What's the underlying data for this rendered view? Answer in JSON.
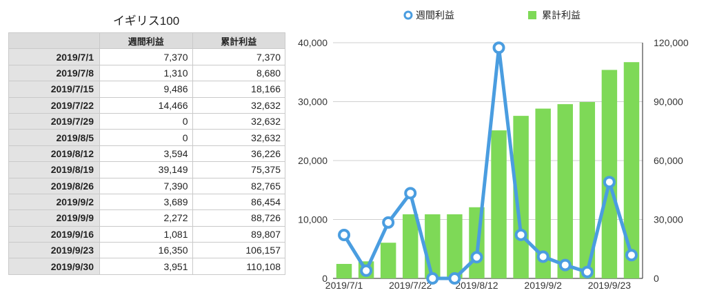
{
  "table": {
    "title": "イギリス100",
    "headers": [
      "",
      "週間利益",
      "累計利益"
    ],
    "rows": [
      [
        "2019/7/1",
        "7,370",
        "7,370"
      ],
      [
        "2019/7/8",
        "1,310",
        "8,680"
      ],
      [
        "2019/7/15",
        "9,486",
        "18,166"
      ],
      [
        "2019/7/22",
        "14,466",
        "32,632"
      ],
      [
        "2019/7/29",
        "0",
        "32,632"
      ],
      [
        "2019/8/5",
        "0",
        "32,632"
      ],
      [
        "2019/8/12",
        "3,594",
        "36,226"
      ],
      [
        "2019/8/19",
        "39,149",
        "75,375"
      ],
      [
        "2019/8/26",
        "7,390",
        "82,765"
      ],
      [
        "2019/9/2",
        "3,689",
        "86,454"
      ],
      [
        "2019/9/9",
        "2,272",
        "88,726"
      ],
      [
        "2019/9/16",
        "1,081",
        "89,807"
      ],
      [
        "2019/9/23",
        "16,350",
        "106,157"
      ],
      [
        "2019/9/30",
        "3,951",
        "110,108"
      ]
    ]
  },
  "chart_data": {
    "type": "bar+line",
    "title": "",
    "legend_position": "top",
    "categories": [
      "2019/7/1",
      "2019/7/8",
      "2019/7/15",
      "2019/7/22",
      "2019/7/29",
      "2019/8/5",
      "2019/8/12",
      "2019/8/19",
      "2019/8/26",
      "2019/9/2",
      "2019/9/9",
      "2019/9/16",
      "2019/9/23",
      "2019/9/30"
    ],
    "x_tick_labels": [
      "2019/7/1",
      "2019/7/22",
      "2019/8/12",
      "2019/9/2",
      "2019/9/23"
    ],
    "x_tick_indices": [
      0,
      3,
      6,
      9,
      12
    ],
    "left_axis": {
      "min": 0,
      "max": 40000,
      "ticks": [
        "0",
        "10,000",
        "20,000",
        "30,000",
        "40,000"
      ]
    },
    "right_axis": {
      "min": 0,
      "max": 120000,
      "ticks": [
        "0",
        "30,000",
        "60,000",
        "90,000",
        "120,000"
      ]
    },
    "grid": true,
    "series": [
      {
        "name": "週間利益",
        "kind": "line",
        "axis": "left",
        "color": "#4a9de0",
        "values": [
          7370,
          1310,
          9486,
          14466,
          0,
          0,
          3594,
          39149,
          7390,
          3689,
          2272,
          1081,
          16350,
          3951
        ]
      },
      {
        "name": "累計利益",
        "kind": "bar",
        "axis": "right",
        "color": "#7ed957",
        "values": [
          7370,
          8680,
          18166,
          32632,
          32632,
          32632,
          36226,
          75375,
          82765,
          86454,
          88726,
          89807,
          106157,
          110108
        ]
      }
    ]
  }
}
